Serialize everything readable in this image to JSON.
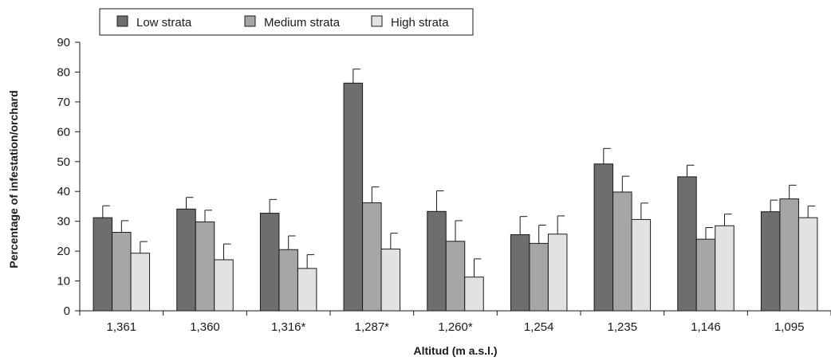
{
  "chart_data": {
    "type": "bar",
    "title": "",
    "xlabel": "Altitud (m a.s.l.)",
    "ylabel": "Percentage of infestation/orchard",
    "ylim": [
      0,
      90
    ],
    "yticks": [
      0,
      10,
      20,
      30,
      40,
      50,
      60,
      70,
      80,
      90
    ],
    "grid": false,
    "legend_position": "top",
    "categories": [
      "1,361",
      "1,360",
      "1,316*",
      "1,287*",
      "1,260*",
      "1,254",
      "1,235",
      "1,146",
      "1,095"
    ],
    "series": [
      {
        "name": "Low strata",
        "color": "#6e6e6e",
        "values": [
          31.2,
          34.1,
          32.7,
          76.3,
          33.3,
          25.5,
          49.2,
          44.9,
          33.2
        ],
        "errors": [
          4.0,
          3.9,
          4.6,
          4.7,
          6.9,
          6.1,
          5.2,
          3.9,
          3.9
        ]
      },
      {
        "name": "Medium strata",
        "color": "#a6a6a6",
        "values": [
          26.3,
          29.8,
          20.5,
          36.2,
          23.3,
          22.6,
          39.8,
          24.0,
          37.5
        ],
        "errors": [
          3.9,
          3.9,
          4.6,
          5.3,
          6.9,
          6.1,
          5.3,
          3.9,
          4.6
        ]
      },
      {
        "name": "High strata",
        "color": "#e2e2e2",
        "values": [
          19.3,
          17.1,
          14.2,
          20.7,
          11.3,
          25.7,
          30.6,
          28.5,
          31.2
        ],
        "errors": [
          3.9,
          5.3,
          4.6,
          5.3,
          6.1,
          6.1,
          5.5,
          3.9,
          3.9
        ]
      }
    ]
  }
}
